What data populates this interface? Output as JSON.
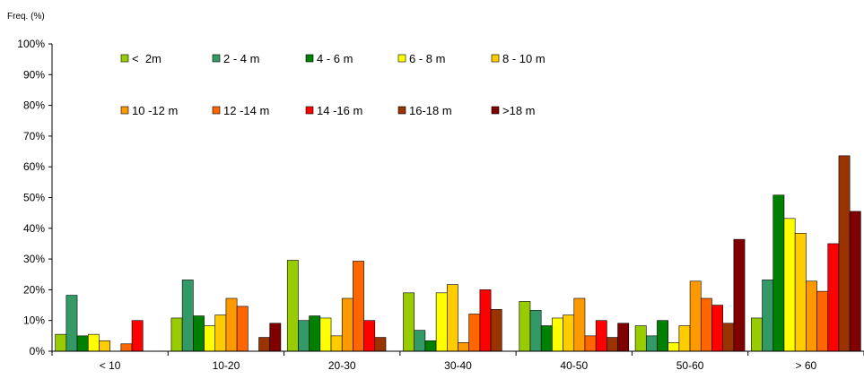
{
  "chart_data": {
    "type": "bar",
    "ylabel": "Freq.  (%)",
    "ylim": [
      0,
      100
    ],
    "y_ticks": [
      "0%",
      "10%",
      "20%",
      "30%",
      "40%",
      "50%",
      "60%",
      "70%",
      "80%",
      "90%",
      "100%"
    ],
    "categories": [
      "< 10",
      "10-20",
      "20-30",
      "30-40",
      "40-50",
      "50-60",
      "> 60"
    ],
    "legend_position": "top-left",
    "series": [
      {
        "name": "<  2m",
        "color": "#99cc00",
        "values": [
          5.5,
          10.8,
          29.6,
          19.0,
          16.2,
          8.3,
          10.8
        ]
      },
      {
        "name": "2 - 4 m",
        "color": "#339966",
        "values": [
          18.2,
          23.2,
          10.0,
          6.8,
          13.3,
          5.0,
          23.2
        ]
      },
      {
        "name": "4 - 6 m",
        "color": "#008000",
        "values": [
          5.0,
          11.5,
          11.5,
          3.4,
          8.3,
          10.0,
          50.8
        ]
      },
      {
        "name": "6 - 8 m",
        "color": "#ffff00",
        "values": [
          5.5,
          8.3,
          10.8,
          19.0,
          10.8,
          2.8,
          43.2
        ]
      },
      {
        "name": "8 - 10 m",
        "color": "#ffcc00",
        "values": [
          3.4,
          11.8,
          5.0,
          21.7,
          11.8,
          8.3,
          38.4
        ]
      },
      {
        "name": "10 -12 m",
        "color": "#ff9900",
        "values": [
          0,
          17.2,
          17.2,
          2.8,
          17.2,
          22.8,
          22.8
        ]
      },
      {
        "name": "12 -14 m",
        "color": "#ff6600",
        "values": [
          2.4,
          14.6,
          29.3,
          12.1,
          5.0,
          17.2,
          19.5
        ]
      },
      {
        "name": "14 -16 m",
        "color": "#ff0000",
        "values": [
          10.0,
          0,
          10.0,
          20.0,
          10.0,
          15.0,
          35.0
        ]
      },
      {
        "name": "16-18 m",
        "color": "#993300",
        "values": [
          0,
          4.5,
          4.5,
          13.6,
          4.5,
          9.1,
          63.6
        ]
      },
      {
        "name": ">18 m",
        "color": "#800000",
        "values": [
          0,
          9.1,
          0,
          0,
          9.1,
          36.4,
          45.5
        ]
      }
    ]
  }
}
